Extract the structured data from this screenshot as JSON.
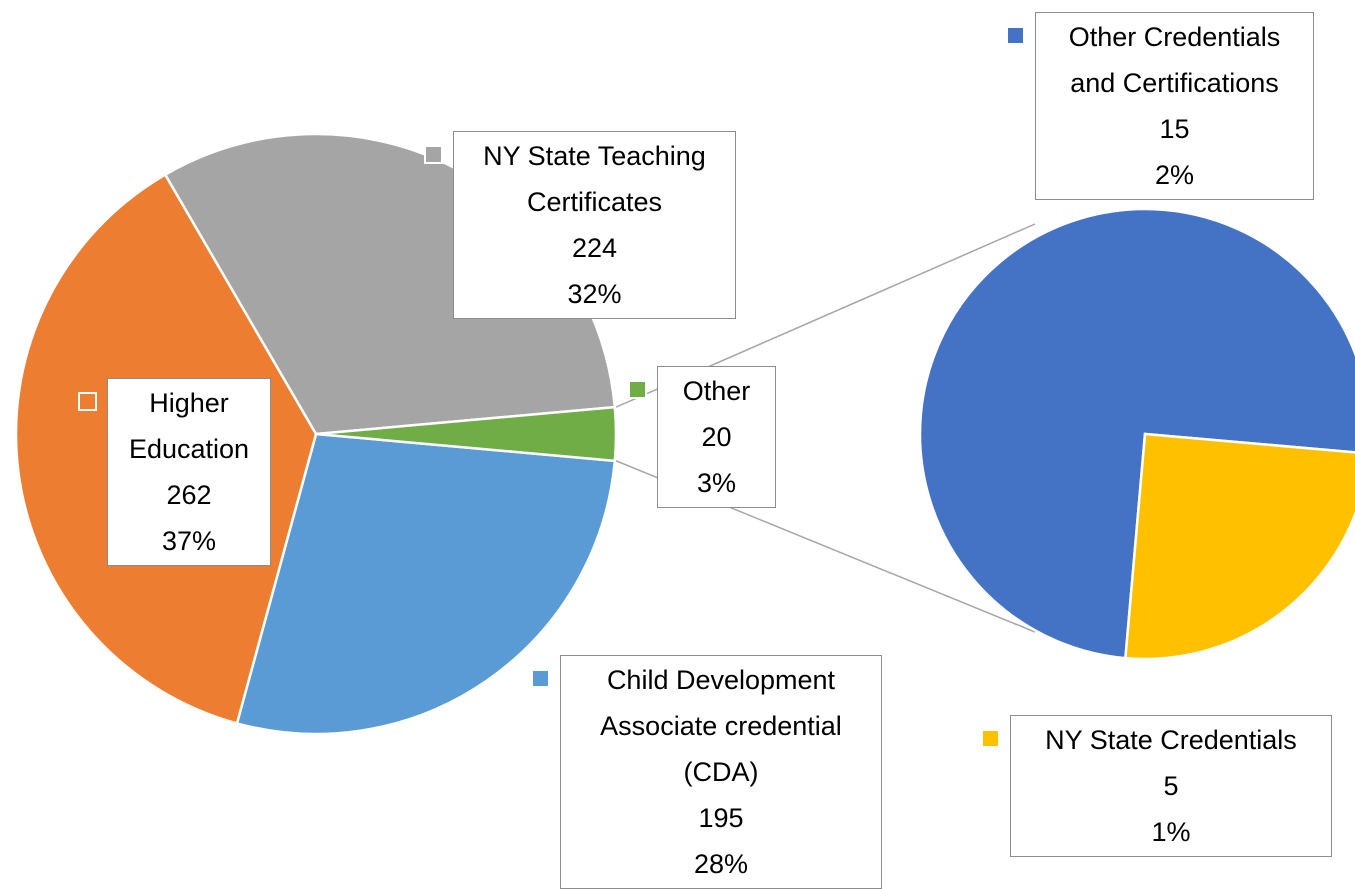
{
  "chart_data": {
    "type": "pie",
    "categories": [
      "Child Development Associate credential (CDA)",
      "Higher Education",
      "NY State Teaching Certificates",
      "Other"
    ],
    "values": [
      195,
      262,
      224,
      20
    ],
    "percent_labels": [
      "28%",
      "37%",
      "32%",
      "3%"
    ],
    "colors": [
      "#5B9BD5",
      "#ED7D31",
      "#A5A5A5",
      "#70AD47"
    ],
    "secondary": {
      "categories": [
        "Other Credentials and Certifications",
        "NY State Credentials"
      ],
      "values": [
        15,
        5
      ],
      "percent_labels": [
        "2%",
        "1%"
      ],
      "colors": [
        "#4472C4",
        "#FFC000"
      ]
    }
  }
}
